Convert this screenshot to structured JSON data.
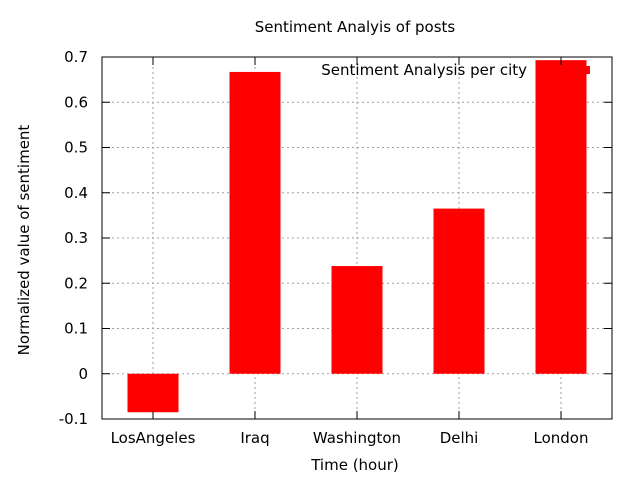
{
  "chart_data": {
    "type": "bar",
    "title": "Sentiment Analyis of posts",
    "xlabel": "Time (hour)",
    "ylabel": "Normalized value of sentiment",
    "categories": [
      "LosAngeles",
      "Iraq",
      "Washington",
      "Delhi",
      "London"
    ],
    "series": [
      {
        "name": "Sentiment Analysis per city",
        "values": [
          -0.085,
          0.667,
          0.238,
          0.365,
          0.693
        ],
        "color": "#ff0000"
      }
    ],
    "ylim": [
      -0.1,
      0.7
    ],
    "yticks": [
      "-0.1",
      "0",
      "0.1",
      "0.2",
      "0.3",
      "0.4",
      "0.5",
      "0.6",
      "0.7"
    ],
    "grid": true,
    "legend_position": "top-right"
  }
}
